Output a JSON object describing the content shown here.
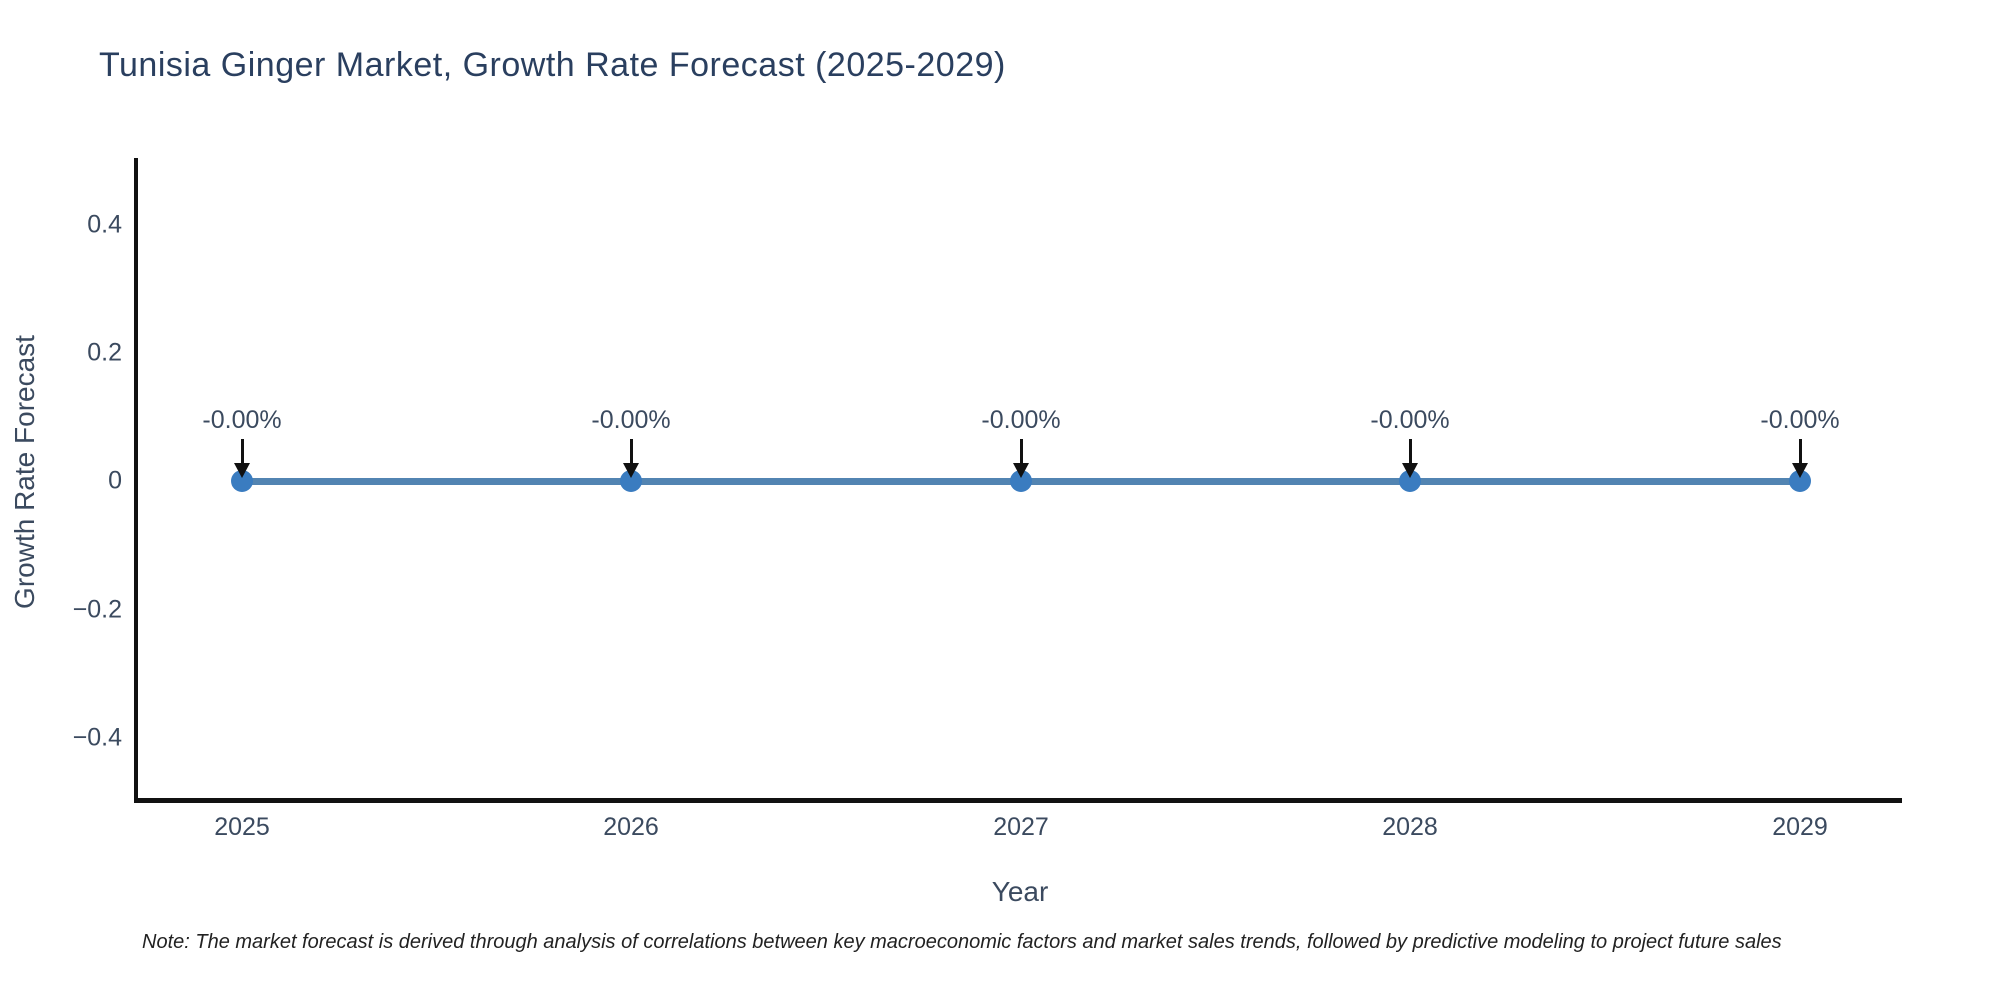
{
  "chart": {
    "title": "Tunisia Ginger Market, Growth Rate Forecast (2025-2029)",
    "x_axis_title": "Year",
    "y_axis_title": "Growth Rate Forecast",
    "note": "Note: The market forecast is derived through analysis of correlations between key macroeconomic factors and market sales trends, followed by predictive modeling to project future sales"
  },
  "chart_data": {
    "type": "line",
    "title": "Tunisia Ginger Market, Growth Rate Forecast (2025-2029)",
    "xlabel": "Year",
    "ylabel": "Growth Rate Forecast",
    "categories": [
      "2025",
      "2026",
      "2027",
      "2028",
      "2029"
    ],
    "series": [
      {
        "name": "Growth Rate Forecast",
        "values": [
          0,
          0,
          0,
          0,
          0
        ]
      }
    ],
    "point_labels": [
      "-0.00%",
      "-0.00%",
      "-0.00%",
      "-0.00%",
      "-0.00%"
    ],
    "ytick_labels": [
      "0.4",
      "0.2",
      "0",
      "−0.2",
      "−0.4"
    ],
    "ylim": [
      -0.5,
      0.5
    ],
    "grid": false,
    "legend_visible": false,
    "annotation_arrows": "black arrows pointing down to each data point",
    "colors": {
      "line": "#5284b2",
      "marker": "#3a7cc0",
      "axis": "#111111",
      "text": "#2a3f5f",
      "arrow": "#111111"
    }
  }
}
